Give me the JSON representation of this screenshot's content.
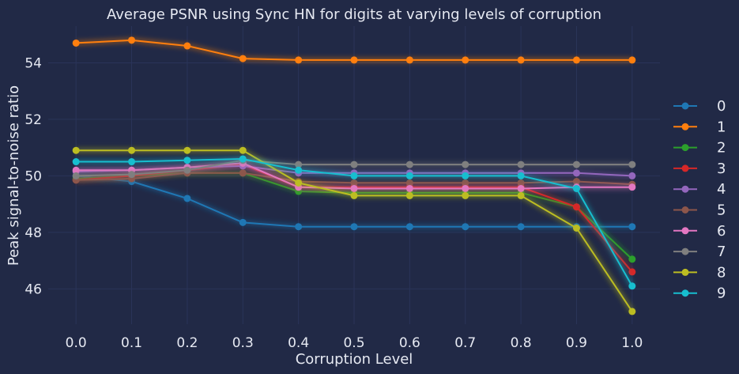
{
  "chart_data": {
    "type": "line",
    "title": "Average PSNR using Sync HN for digits at varying levels of corruption",
    "xlabel": "Corruption Level",
    "ylabel": "Peak signal-to-noise ratio",
    "x": [
      0.0,
      0.1,
      0.2,
      0.3,
      0.4,
      0.5,
      0.6,
      0.7,
      0.8,
      0.9,
      1.0
    ],
    "x_ticks": [
      "0.0",
      "0.1",
      "0.2",
      "0.3",
      "0.4",
      "0.5",
      "0.6",
      "0.7",
      "0.8",
      "0.9",
      "1.0"
    ],
    "y_ticks": [
      46,
      48,
      50,
      52,
      54
    ],
    "xlim": [
      -0.05,
      1.05
    ],
    "ylim": [
      44.75,
      55.3
    ],
    "grid": true,
    "legend_position": "right",
    "background_color": "#212946",
    "grid_color": "#2A3459",
    "series": [
      {
        "name": "0",
        "color": "#1f77b4",
        "values": [
          50.0,
          49.8,
          49.2,
          48.35,
          48.2,
          48.2,
          48.2,
          48.2,
          48.2,
          48.2,
          48.2
        ]
      },
      {
        "name": "1",
        "color": "#ff7f0e",
        "values": [
          54.7,
          54.8,
          54.6,
          54.15,
          54.1,
          54.1,
          54.1,
          54.1,
          54.1,
          54.1,
          54.1
        ]
      },
      {
        "name": "2",
        "color": "#2ca02c",
        "values": [
          49.9,
          50.0,
          50.1,
          50.1,
          49.45,
          49.4,
          49.4,
          49.4,
          49.4,
          48.9,
          47.05
        ]
      },
      {
        "name": "3",
        "color": "#d62728",
        "values": [
          49.85,
          50.0,
          50.2,
          50.4,
          49.6,
          49.6,
          49.6,
          49.6,
          49.6,
          48.9,
          46.6
        ]
      },
      {
        "name": "4",
        "color": "#9467bd",
        "values": [
          50.15,
          50.2,
          50.3,
          50.35,
          50.1,
          50.1,
          50.1,
          50.1,
          50.1,
          50.1,
          50.0
        ]
      },
      {
        "name": "5",
        "color": "#8c564b",
        "values": [
          49.85,
          49.9,
          50.1,
          50.1,
          49.8,
          49.75,
          49.75,
          49.75,
          49.75,
          49.8,
          49.7
        ]
      },
      {
        "name": "6",
        "color": "#e377c2",
        "values": [
          50.2,
          50.2,
          50.3,
          50.45,
          49.6,
          49.55,
          49.55,
          49.55,
          49.55,
          49.6,
          49.6
        ]
      },
      {
        "name": "7",
        "color": "#7f7f7f",
        "values": [
          50.0,
          50.05,
          50.2,
          50.55,
          50.4,
          50.4,
          50.4,
          50.4,
          50.4,
          50.4,
          50.4
        ]
      },
      {
        "name": "8",
        "color": "#bcbd22",
        "values": [
          50.9,
          50.9,
          50.9,
          50.9,
          49.75,
          49.3,
          49.3,
          49.3,
          49.3,
          48.15,
          45.2
        ]
      },
      {
        "name": "9",
        "color": "#17becf",
        "values": [
          50.5,
          50.5,
          50.55,
          50.6,
          50.2,
          50.0,
          50.0,
          50.0,
          50.0,
          49.55,
          46.1
        ]
      }
    ]
  }
}
